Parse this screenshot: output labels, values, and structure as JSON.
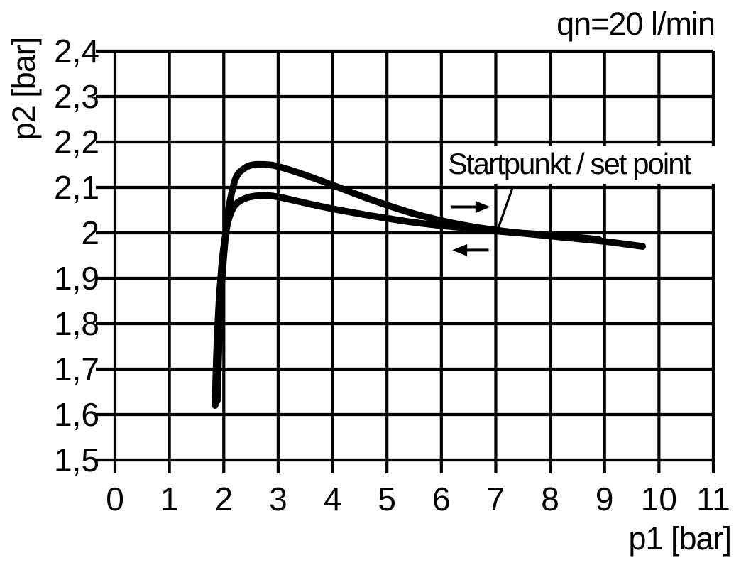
{
  "colors": {
    "background": "#ffffff",
    "line": "#000000",
    "grid": "#000000",
    "text": "#000000"
  },
  "chart_data": {
    "type": "line",
    "title": "qn=20 l/min",
    "xlabel": "p1 [bar]",
    "ylabel": "p2 [bar]",
    "xlim": [
      0,
      11
    ],
    "ylim": [
      1.5,
      2.4
    ],
    "grid": "on",
    "legend": "none",
    "x_ticks": {
      "values": [
        0,
        1,
        2,
        3,
        4,
        5,
        6,
        7,
        8,
        9,
        10,
        11
      ],
      "labels": [
        "0",
        "1",
        "2",
        "3",
        "4",
        "5",
        "6",
        "7",
        "8",
        "9",
        "10",
        "11"
      ]
    },
    "y_ticks": {
      "values": [
        2.4,
        2.3,
        2.2,
        2.1,
        2.0,
        1.9,
        1.8,
        1.7,
        1.6,
        1.5
      ],
      "labels": [
        "2,4",
        "2,3",
        "2,2",
        "2,1",
        "2",
        "1,9",
        "1,8",
        "1,7",
        "1,6",
        "1,5"
      ]
    },
    "series": [
      {
        "name": "upper_branch",
        "x": [
          1.88,
          1.92,
          1.97,
          2.03,
          2.1,
          2.22,
          2.38,
          2.55,
          2.8,
          3.0,
          3.5,
          4.0,
          4.5,
          5.0,
          5.5,
          6.0,
          6.5,
          7.0,
          7.5,
          8.0,
          8.5,
          9.0,
          9.4,
          9.7
        ],
        "y": [
          1.63,
          1.78,
          1.9,
          1.99,
          2.06,
          2.12,
          2.142,
          2.15,
          2.15,
          2.146,
          2.127,
          2.105,
          2.082,
          2.061,
          2.042,
          2.027,
          2.015,
          2.006,
          1.999,
          1.993,
          1.987,
          1.981,
          1.975,
          1.97
        ]
      },
      {
        "name": "lower_branch",
        "x": [
          1.84,
          1.87,
          1.92,
          1.99,
          2.08,
          2.2,
          2.4,
          2.65,
          2.9,
          3.2,
          3.6,
          4.0,
          4.5,
          5.0,
          5.5,
          6.0,
          6.5,
          7.0,
          7.4,
          7.9,
          8.5,
          8.9
        ],
        "y": [
          1.62,
          1.74,
          1.86,
          1.96,
          2.025,
          2.06,
          2.076,
          2.082,
          2.081,
          2.074,
          2.063,
          2.053,
          2.042,
          2.032,
          2.023,
          2.016,
          2.01,
          2.004,
          2.0,
          1.996,
          1.99,
          1.985
        ]
      }
    ],
    "annotations": {
      "flow_condition": "qn=20 l/min",
      "set_point": {
        "text": "Startpunkt / set point",
        "leader_from": [
          7.32,
          2.103
        ],
        "leader_to": [
          7.03,
          2.005
        ]
      },
      "direction_arrows": [
        {
          "direction": "right",
          "x_from": 6.17,
          "x_to": 6.9,
          "y": 2.057
        },
        {
          "direction": "left",
          "x_from": 6.87,
          "x_to": 6.2,
          "y": 1.962
        }
      ]
    }
  }
}
